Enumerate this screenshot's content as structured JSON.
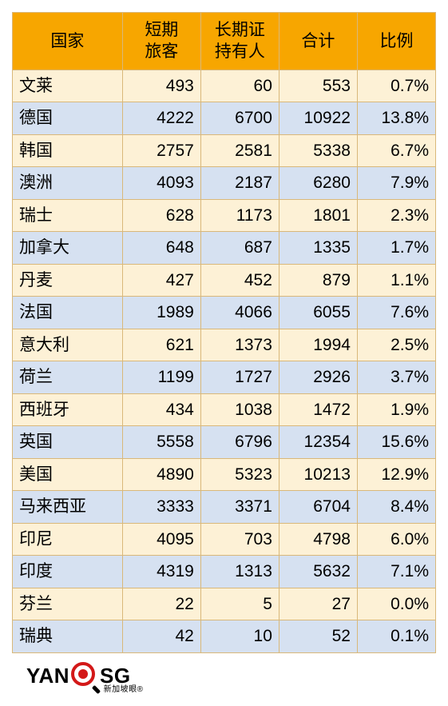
{
  "table": {
    "headers": {
      "country": "国家",
      "short": "短期\n旅客",
      "long": "长期证\n持有人",
      "total": "合计",
      "pct": "比例"
    },
    "colors": {
      "header_bg": "#f7a600",
      "row_odd_bg": "#fdf1d6",
      "row_even_bg": "#d6e1f1",
      "border": "#d9b87a",
      "text": "#000000"
    },
    "rows": [
      {
        "country": "文莱",
        "short": "493",
        "long": "60",
        "total": "553",
        "pct": "0.7%"
      },
      {
        "country": "德国",
        "short": "4222",
        "long": "6700",
        "total": "10922",
        "pct": "13.8%"
      },
      {
        "country": "韩国",
        "short": "2757",
        "long": "2581",
        "total": "5338",
        "pct": "6.7%"
      },
      {
        "country": "澳洲",
        "short": "4093",
        "long": "2187",
        "total": "6280",
        "pct": "7.9%"
      },
      {
        "country": "瑞士",
        "short": "628",
        "long": "1173",
        "total": "1801",
        "pct": "2.3%"
      },
      {
        "country": "加拿大",
        "short": "648",
        "long": "687",
        "total": "1335",
        "pct": "1.7%"
      },
      {
        "country": "丹麦",
        "short": "427",
        "long": "452",
        "total": "879",
        "pct": "1.1%"
      },
      {
        "country": "法国",
        "short": "1989",
        "long": "4066",
        "total": "6055",
        "pct": "7.6%"
      },
      {
        "country": "意大利",
        "short": "621",
        "long": "1373",
        "total": "1994",
        "pct": "2.5%"
      },
      {
        "country": "荷兰",
        "short": "1199",
        "long": "1727",
        "total": "2926",
        "pct": "3.7%"
      },
      {
        "country": "西班牙",
        "short": "434",
        "long": "1038",
        "total": "1472",
        "pct": "1.9%"
      },
      {
        "country": "英国",
        "short": "5558",
        "long": "6796",
        "total": "12354",
        "pct": "15.6%"
      },
      {
        "country": "美国",
        "short": "4890",
        "long": "5323",
        "total": "10213",
        "pct": "12.9%"
      },
      {
        "country": "马来西亚",
        "short": "3333",
        "long": "3371",
        "total": "6704",
        "pct": "8.4%"
      },
      {
        "country": "印尼",
        "short": "4095",
        "long": "703",
        "total": "4798",
        "pct": "6.0%"
      },
      {
        "country": "印度",
        "short": "4319",
        "long": "1313",
        "total": "5632",
        "pct": "7.1%"
      },
      {
        "country": "芬兰",
        "short": "22",
        "long": "5",
        "total": "27",
        "pct": "0.0%"
      },
      {
        "country": "瑞典",
        "short": "42",
        "long": "10",
        "total": "52",
        "pct": "0.1%"
      }
    ]
  },
  "logo": {
    "left": "YAN",
    "right": "SG",
    "sub": "新加坡眼®",
    "icon_color": "#d31818"
  }
}
